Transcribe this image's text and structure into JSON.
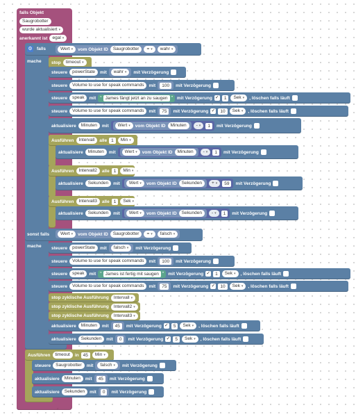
{
  "trigger": {
    "title": "falls Objekt",
    "object": "Saugrobotter",
    "event": "wurde aktualisiert",
    "ack_label": "anerkannt ist",
    "ack_value": "egal"
  },
  "if": {
    "falls_label": "falls",
    "mache_label": "mache",
    "sonst_falls_label": "sonst falls",
    "cond1": {
      "prop": "Wert",
      "from": "vom Objekt ID",
      "obj": "Saugrobotter",
      "op": "=",
      "value": "wahr"
    },
    "cond2": {
      "prop": "Wert",
      "from": "vom Objekt ID",
      "obj": "Saugrobotter",
      "op": "=",
      "value": "falsch"
    }
  },
  "words": {
    "steuere": "steuere",
    "mit": "mit",
    "mit_verzoegerung": "mit Verzögerung",
    "aktualisiere": "aktualisiere",
    "loeschen": ", löschen falls läuft",
    "sek": "Sek",
    "wert": "Wert",
    "vom_objekt_id": "vom Objekt ID",
    "ausfuehren": "Ausführen",
    "alle": "alle",
    "min": "Min",
    "in": "in",
    "stop": "stop",
    "stop_zyklisch": "stop zyklische Ausführung",
    "quote_open": "“",
    "quote_close": "”",
    "check": "✓"
  },
  "block1": {
    "stop_target": "timeout",
    "powerstate_target": "powerState",
    "powerstate_value": "wahr",
    "volume_target": "Volume to use for speak commands",
    "volume_value_1": "100",
    "speak_target": "speak",
    "speak_text": "James fängt jetzt an zu saugen",
    "speak_delay": "1",
    "volume_value_2": "75",
    "volume_delay": "10",
    "minuten_target": "Minuten",
    "minuten_obj": "Minuten",
    "minuten_op": "-",
    "minuten_num": "1",
    "intervall1": {
      "name": "Intervall",
      "every": "1",
      "unit": "Min",
      "target": "Minuten",
      "obj": "Minuten",
      "op": "-",
      "num": "1"
    },
    "intervall2": {
      "name": "Intervall2",
      "every": "1",
      "unit": "Min",
      "target": "Sekunden",
      "obj": "Sekunden",
      "op": "+",
      "num": "59"
    },
    "intervall3": {
      "name": "Intervall3",
      "every": "1",
      "unit": "Sek",
      "target": "Sekunden",
      "obj": "Sekunden",
      "op": "-",
      "num": "1"
    }
  },
  "block2": {
    "powerstate_value": "falsch",
    "volume_value_1": "100",
    "speak_text": "James ist fertig mit saugen",
    "speak_delay": "1",
    "volume_value_2": "75",
    "volume_delay": "10",
    "stop1": "Intervall",
    "stop2": "Intervall2",
    "stop3": "Intervall3",
    "minuten_value": "45",
    "minuten_delay": "5",
    "sekunden_target": "Sekunden",
    "sekunden_value": "0",
    "sekunden_delay": "5"
  },
  "timeout": {
    "name": "timeout",
    "in_value": "45",
    "unit": "Min",
    "target": "Saugrobotter",
    "value": "falsch",
    "minuten_target": "Minuten",
    "minuten_value": "45",
    "sekunden_target": "Sekunden",
    "sekunden_value": "0"
  }
}
